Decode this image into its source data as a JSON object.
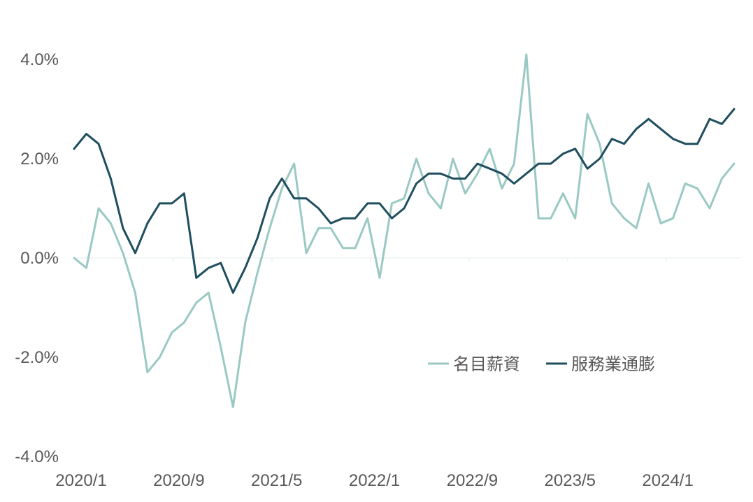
{
  "chart_data": {
    "type": "line",
    "title": "",
    "xlabel": "",
    "ylabel": "",
    "ylim": [
      -4.0,
      4.0
    ],
    "y_ticks": [
      4.0,
      2.0,
      0.0,
      -2.0,
      -4.0
    ],
    "y_tick_labels": [
      "4.0%",
      "2.0%",
      "0.0%",
      "-2.0%",
      "-4.0%"
    ],
    "x": [
      "2020/1",
      "2020/2",
      "2020/3",
      "2020/4",
      "2020/5",
      "2020/6",
      "2020/7",
      "2020/8",
      "2020/9",
      "2020/10",
      "2020/11",
      "2020/12",
      "2021/1",
      "2021/2",
      "2021/3",
      "2021/4",
      "2021/5",
      "2021/6",
      "2021/7",
      "2021/8",
      "2021/9",
      "2021/10",
      "2021/11",
      "2021/12",
      "2022/1",
      "2022/2",
      "2022/3",
      "2022/4",
      "2022/5",
      "2022/6",
      "2022/7",
      "2022/8",
      "2022/9",
      "2022/10",
      "2022/11",
      "2022/12",
      "2023/1",
      "2023/2",
      "2023/3",
      "2023/4",
      "2023/5",
      "2023/6",
      "2023/7",
      "2023/8",
      "2023/9",
      "2023/10",
      "2023/11",
      "2023/12",
      "2024/1",
      "2024/2",
      "2024/3",
      "2024/4",
      "2024/5",
      "2024/6",
      "2024/7"
    ],
    "x_tick_labels": [
      "2020/1",
      "2020/9",
      "2021/5",
      "2022/1",
      "2022/9",
      "2023/5",
      "2024/1"
    ],
    "grid": false,
    "legend_position": "lower-right",
    "series": [
      {
        "name": "名目薪資",
        "color": "#9ac9c3",
        "values": [
          0.0,
          -0.2,
          1.0,
          0.7,
          0.1,
          -0.7,
          -2.3,
          -2.0,
          -1.5,
          -1.3,
          -0.9,
          -0.7,
          -1.8,
          -3.0,
          -1.3,
          -0.3,
          0.6,
          1.4,
          1.9,
          0.1,
          0.6,
          0.6,
          0.2,
          0.2,
          0.8,
          -0.4,
          1.1,
          1.2,
          2.0,
          1.3,
          1.0,
          2.0,
          1.3,
          1.7,
          2.2,
          1.4,
          1.9,
          4.1,
          0.8,
          0.8,
          1.3,
          0.8,
          2.9,
          2.3,
          1.1,
          0.8,
          0.6,
          1.5,
          0.7,
          0.8,
          1.5,
          1.4,
          1.0,
          1.6,
          1.9
        ]
      },
      {
        "name": "服務業通膨",
        "color": "#1f4e5f",
        "values": [
          2.2,
          2.5,
          2.3,
          1.6,
          0.6,
          0.1,
          0.7,
          1.1,
          1.1,
          1.3,
          -0.4,
          -0.2,
          -0.1,
          -0.7,
          -0.2,
          0.4,
          1.2,
          1.6,
          1.2,
          1.2,
          1.0,
          0.7,
          0.8,
          0.8,
          1.1,
          1.1,
          0.8,
          1.0,
          1.5,
          1.7,
          1.7,
          1.6,
          1.6,
          1.9,
          1.8,
          1.7,
          1.5,
          1.7,
          1.9,
          1.9,
          2.1,
          2.2,
          1.8,
          2.0,
          2.4,
          2.3,
          2.6,
          2.8,
          2.6,
          2.4,
          2.3,
          2.3,
          2.8,
          2.7,
          3.0
        ]
      }
    ]
  }
}
